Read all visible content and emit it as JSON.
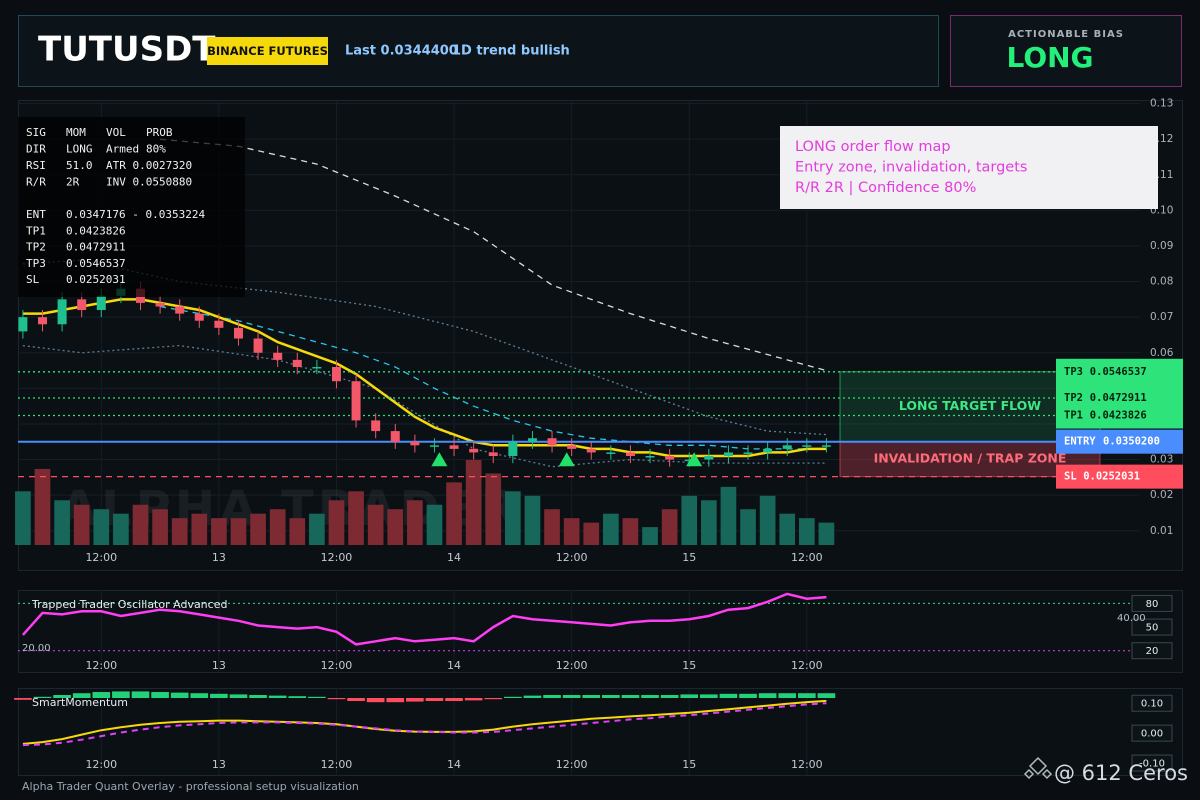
{
  "header": {
    "symbol": "TUTUSDT",
    "badge": "BINANCE FUTURES",
    "last": "Last 0.0344400",
    "trend": "1D trend bullish"
  },
  "bias": {
    "label": "ACTIONABLE BIAS",
    "value": "LONG"
  },
  "stats": {
    "rows": [
      [
        "SIG",
        "MOM",
        "VOL",
        "PROB"
      ],
      [
        "DIR",
        "LONG",
        "Armed",
        "80%"
      ],
      [
        "RSI",
        "51.0",
        "ATR 0.0027320"
      ],
      [
        "R/R",
        "2R",
        "INV 0.0550880"
      ]
    ],
    "levels": [
      [
        "ENT",
        "0.0347176 - 0.0353224"
      ],
      [
        "TP1",
        "0.0423826"
      ],
      [
        "TP2",
        "0.0472911"
      ],
      [
        "TP3",
        "0.0546537"
      ],
      [
        "SL",
        "0.0252031"
      ]
    ]
  },
  "note": {
    "lines": [
      "LONG order flow map",
      "Entry zone, invalidation, targets",
      "R/R 2R | Confidence 80%"
    ]
  },
  "chart_data": [
    {
      "type": "candlestick",
      "watermark": "ALPHA TRADER",
      "x": [
        4,
        6,
        8,
        10,
        12,
        14,
        16,
        18,
        20,
        22,
        24,
        26,
        28,
        30,
        32,
        34,
        36,
        38,
        40,
        42,
        44,
        46,
        48,
        50,
        52,
        54,
        56,
        58,
        60,
        62,
        64,
        66,
        68,
        70,
        72,
        74,
        76,
        78,
        80,
        82,
        84,
        86
      ],
      "open": [
        0.066,
        0.07,
        0.068,
        0.075,
        0.072,
        0.076,
        0.078,
        0.074,
        0.073,
        0.071,
        0.069,
        0.067,
        0.064,
        0.06,
        0.058,
        0.056,
        0.056,
        0.052,
        0.041,
        0.038,
        0.035,
        0.034,
        0.034,
        0.033,
        0.032,
        0.031,
        0.035,
        0.036,
        0.034,
        0.033,
        0.032,
        0.032,
        0.031,
        0.031,
        0.03,
        0.03,
        0.031,
        0.032,
        0.032,
        0.033,
        0.034,
        0.034
      ],
      "high": [
        0.072,
        0.072,
        0.077,
        0.077,
        0.078,
        0.08,
        0.08,
        0.076,
        0.075,
        0.073,
        0.071,
        0.069,
        0.066,
        0.062,
        0.06,
        0.058,
        0.058,
        0.054,
        0.043,
        0.04,
        0.037,
        0.036,
        0.036,
        0.035,
        0.034,
        0.037,
        0.038,
        0.038,
        0.036,
        0.035,
        0.034,
        0.034,
        0.033,
        0.033,
        0.032,
        0.033,
        0.034,
        0.034,
        0.035,
        0.036,
        0.036,
        0.036
      ],
      "low": [
        0.064,
        0.066,
        0.066,
        0.07,
        0.07,
        0.074,
        0.072,
        0.071,
        0.069,
        0.067,
        0.065,
        0.062,
        0.058,
        0.056,
        0.054,
        0.054,
        0.05,
        0.039,
        0.036,
        0.033,
        0.032,
        0.032,
        0.031,
        0.03,
        0.029,
        0.029,
        0.033,
        0.032,
        0.031,
        0.03,
        0.03,
        0.029,
        0.029,
        0.028,
        0.028,
        0.028,
        0.029,
        0.03,
        0.03,
        0.031,
        0.032,
        0.032
      ],
      "close": [
        0.07,
        0.068,
        0.075,
        0.072,
        0.076,
        0.078,
        0.074,
        0.073,
        0.071,
        0.069,
        0.067,
        0.064,
        0.06,
        0.058,
        0.056,
        0.056,
        0.052,
        0.041,
        0.038,
        0.035,
        0.034,
        0.034,
        0.033,
        0.032,
        0.031,
        0.035,
        0.036,
        0.034,
        0.033,
        0.032,
        0.032,
        0.031,
        0.031,
        0.03,
        0.03,
        0.031,
        0.032,
        0.032,
        0.033,
        0.034,
        0.034,
        0.034
      ],
      "volume": [
        60,
        85,
        50,
        45,
        40,
        35,
        45,
        40,
        30,
        35,
        30,
        30,
        35,
        40,
        30,
        35,
        50,
        60,
        45,
        40,
        50,
        45,
        70,
        95,
        80,
        60,
        55,
        40,
        30,
        25,
        35,
        30,
        20,
        40,
        55,
        50,
        65,
        40,
        55,
        35,
        30,
        25
      ],
      "colors": {
        "up": "#1fc08f",
        "down": "#f2576a",
        "volume_up": "#17675a",
        "volume_down": "#7d2a33"
      },
      "overlays": [
        {
          "color": "#5d7f96",
          "style": "dotted",
          "x": [
            4,
            10,
            20,
            30,
            40,
            50,
            58,
            66,
            74,
            80,
            86
          ],
          "values": [
            0.085,
            0.086,
            0.08,
            0.077,
            0.073,
            0.066,
            0.058,
            0.05,
            0.042,
            0.038,
            0.037
          ]
        },
        {
          "color": "#5d7f96",
          "style": "dotted",
          "x": [
            4,
            10,
            20,
            30,
            40,
            50,
            58,
            66,
            74,
            80,
            86
          ],
          "values": [
            0.062,
            0.06,
            0.062,
            0.058,
            0.05,
            0.033,
            0.028,
            0.03,
            0.029,
            0.029,
            0.029
          ]
        },
        {
          "color": "#d8dde2",
          "style": "dashed",
          "x": [
            18,
            26,
            34,
            42,
            50,
            58,
            66,
            74,
            82,
            86
          ],
          "values": [
            0.12,
            0.118,
            0.113,
            0.104,
            0.094,
            0.079,
            0.071,
            0.064,
            0.058,
            0.055
          ]
        },
        {
          "color": "#27c6e6",
          "style": "dashed",
          "x": [
            18,
            22,
            26,
            30,
            34,
            38,
            42,
            46,
            50,
            54,
            58,
            62,
            66,
            70,
            74,
            78,
            82,
            86
          ],
          "values": [
            0.073,
            0.071,
            0.069,
            0.066,
            0.063,
            0.06,
            0.056,
            0.05,
            0.045,
            0.041,
            0.038,
            0.036,
            0.035,
            0.034,
            0.034,
            0.033,
            0.033,
            0.033
          ]
        },
        {
          "color": "#f5d90a",
          "style": "solid",
          "x": [
            4,
            6,
            8,
            10,
            12,
            14,
            16,
            18,
            20,
            22,
            24,
            26,
            28,
            30,
            32,
            34,
            36,
            38,
            40,
            42,
            44,
            46,
            48,
            50,
            52,
            54,
            56,
            58,
            60,
            62,
            64,
            66,
            68,
            70,
            72,
            74,
            76,
            78,
            80,
            82,
            84,
            86
          ],
          "values": [
            0.071,
            0.071,
            0.072,
            0.073,
            0.074,
            0.075,
            0.075,
            0.074,
            0.073,
            0.072,
            0.07,
            0.068,
            0.066,
            0.063,
            0.061,
            0.059,
            0.057,
            0.054,
            0.05,
            0.046,
            0.042,
            0.039,
            0.037,
            0.035,
            0.034,
            0.034,
            0.034,
            0.034,
            0.034,
            0.033,
            0.033,
            0.032,
            0.032,
            0.031,
            0.031,
            0.031,
            0.031,
            0.031,
            0.032,
            0.032,
            0.033,
            0.033
          ]
        }
      ],
      "levels": [
        {
          "name": "TP3",
          "value": 0.0546537,
          "color": "#2ee47a",
          "style": "dotted"
        },
        {
          "name": "TP2",
          "value": 0.0472911,
          "color": "#2ee47a",
          "style": "dotted"
        },
        {
          "name": "TP1",
          "value": 0.0423826,
          "color": "#2ee47a",
          "style": "dotted"
        },
        {
          "name": "ENTRY",
          "value": 0.03502,
          "label": "0.0350200",
          "color": "#4a8dff",
          "style": "solid"
        },
        {
          "name": "SL",
          "value": 0.0252031,
          "color": "#ff4d5e",
          "style": "dashed"
        }
      ],
      "zones": [
        {
          "label": "LONG TARGET FLOW",
          "color": "#2ee47a"
        },
        {
          "label": "INVALIDATION / TRAP ZONE",
          "color": "#ff4d5e"
        }
      ],
      "signals": {
        "color": "#22e06a",
        "x": [
          46.5,
          59.5,
          72.5
        ],
        "values": [
          0.0298,
          0.0298,
          0.0298
        ]
      },
      "xlim": [
        3.5,
        118
      ],
      "ylim": [
        0.006,
        0.131
      ],
      "xticks": [
        {
          "value": 12,
          "label": "12:00"
        },
        {
          "value": 24,
          "label": "13"
        },
        {
          "value": 36,
          "label": "12:00"
        },
        {
          "value": 48,
          "label": "14"
        },
        {
          "value": 60,
          "label": "12:00"
        },
        {
          "value": 72,
          "label": "15"
        },
        {
          "value": 84,
          "label": "12:00"
        }
      ],
      "yticks": [
        0.01,
        0.02,
        0.03,
        0.04,
        0.05,
        0.06,
        0.07,
        0.08,
        0.09,
        {
          "value": 0.1,
          "label": "0.10"
        },
        0.11,
        0.12,
        0.13
      ],
      "grid": true
    },
    {
      "type": "line",
      "title": "Trapped Trader Oscillator Advanced",
      "annotations": [
        "40.00",
        "20.00"
      ],
      "x": [
        4,
        6,
        8,
        10,
        12,
        14,
        16,
        18,
        20,
        22,
        24,
        26,
        28,
        30,
        32,
        34,
        36,
        38,
        40,
        42,
        44,
        46,
        48,
        50,
        52,
        54,
        56,
        58,
        60,
        62,
        64,
        66,
        68,
        70,
        72,
        74,
        76,
        78,
        80,
        82,
        84,
        86
      ],
      "series": [
        {
          "color": "#ff3df2",
          "values": [
            40,
            68,
            66,
            70,
            70,
            64,
            68,
            72,
            70,
            66,
            62,
            58,
            52,
            50,
            48,
            50,
            44,
            28,
            32,
            36,
            32,
            34,
            36,
            32,
            50,
            64,
            60,
            58,
            56,
            54,
            52,
            56,
            58,
            58,
            60,
            64,
            72,
            74,
            82,
            92,
            86,
            88
          ]
        }
      ],
      "xlim": [
        3.5,
        118
      ],
      "ylim": [
        -7,
        97
      ],
      "xticks": [
        {
          "value": 12,
          "label": "12:00"
        },
        {
          "value": 24,
          "label": "13"
        },
        {
          "value": 36,
          "label": "12:00"
        },
        {
          "value": 48,
          "label": "14"
        },
        {
          "value": 60,
          "label": "12:00"
        },
        {
          "value": 72,
          "label": "15"
        },
        {
          "value": 84,
          "label": "12:00"
        }
      ],
      "yticks": [
        80,
        50,
        20
      ],
      "tick_line_colors": [
        "#3ddc84",
        null,
        "#e040fb"
      ]
    },
    {
      "type": "combo",
      "title": "SmartMomentum",
      "x": [
        4,
        6,
        8,
        10,
        12,
        14,
        16,
        18,
        20,
        22,
        24,
        26,
        28,
        30,
        32,
        34,
        36,
        38,
        40,
        42,
        44,
        46,
        48,
        50,
        52,
        54,
        56,
        58,
        60,
        62,
        64,
        66,
        68,
        70,
        72,
        74,
        76,
        78,
        80,
        82,
        84,
        86
      ],
      "histogram": {
        "up_color": "#22d27a",
        "down_color": "#ff4d5e",
        "values": [
          -0.006,
          0.004,
          0.01,
          0.016,
          0.02,
          0.022,
          0.022,
          0.02,
          0.018,
          0.016,
          0.014,
          0.012,
          0.01,
          0.008,
          0.006,
          0.004,
          -0.004,
          -0.01,
          -0.014,
          -0.014,
          -0.012,
          -0.01,
          -0.01,
          -0.008,
          -0.004,
          0.004,
          0.008,
          0.01,
          0.01,
          0.01,
          0.01,
          0.01,
          0.01,
          0.01,
          0.012,
          0.012,
          0.014,
          0.014,
          0.016,
          0.016,
          0.016,
          0.016
        ]
      },
      "series": [
        {
          "color": "#f5d90a",
          "style": "solid",
          "values": [
            -0.036,
            -0.03,
            -0.02,
            -0.005,
            0.01,
            0.02,
            0.028,
            0.034,
            0.038,
            0.04,
            0.042,
            0.042,
            0.04,
            0.038,
            0.036,
            0.034,
            0.03,
            0.022,
            0.014,
            0.008,
            0.005,
            0.004,
            0.004,
            0.006,
            0.012,
            0.022,
            0.03,
            0.036,
            0.042,
            0.048,
            0.052,
            0.056,
            0.06,
            0.064,
            0.068,
            0.074,
            0.08,
            0.086,
            0.092,
            0.098,
            0.104,
            0.108
          ]
        },
        {
          "color": "#e040fb",
          "style": "dashed",
          "values": [
            -0.04,
            -0.038,
            -0.032,
            -0.022,
            -0.01,
            0.002,
            0.012,
            0.02,
            0.026,
            0.03,
            0.034,
            0.036,
            0.036,
            0.036,
            0.034,
            0.032,
            0.028,
            0.022,
            0.016,
            0.01,
            0.006,
            0.004,
            0.002,
            0.002,
            0.004,
            0.01,
            0.016,
            0.022,
            0.028,
            0.034,
            0.04,
            0.046,
            0.05,
            0.056,
            0.06,
            0.066,
            0.072,
            0.078,
            0.084,
            0.09,
            0.096,
            0.1
          ]
        }
      ],
      "xlim": [
        3.5,
        118
      ],
      "ylim": [
        -0.14,
        0.151
      ],
      "xticks": [
        {
          "value": 12,
          "label": "12:00"
        },
        {
          "value": 24,
          "label": "13"
        },
        {
          "value": 36,
          "label": "12:00"
        },
        {
          "value": 48,
          "label": "14"
        },
        {
          "value": 60,
          "label": "12:00"
        },
        {
          "value": 72,
          "label": "15"
        },
        {
          "value": 84,
          "label": "12:00"
        }
      ],
      "yticks": [
        {
          "value": 0.1,
          "label": "0.10"
        },
        {
          "value": 0,
          "label": "0.00"
        },
        {
          "value": -0.1,
          "label": "-0.10"
        }
      ]
    }
  ],
  "footer": "Alpha Trader Quant Overlay - professional setup visualization",
  "watermark": "@ 612 Ceros"
}
